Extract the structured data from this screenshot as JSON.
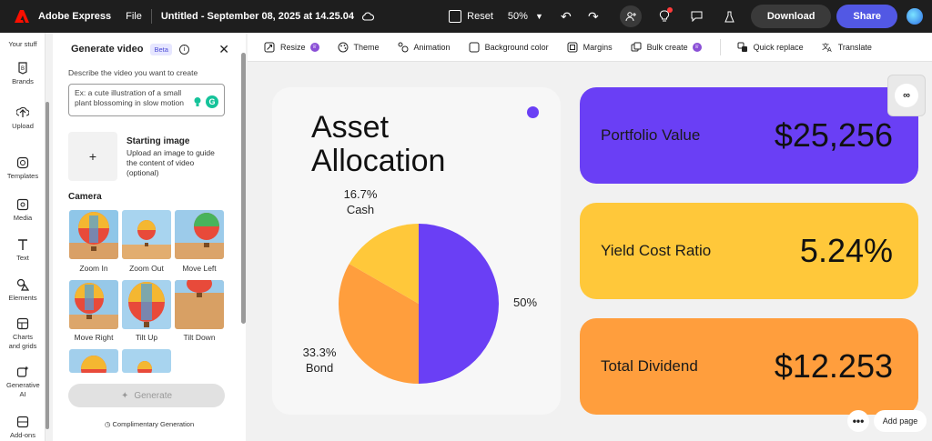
{
  "topbar": {
    "app_name": "Adobe Express",
    "file_label": "File",
    "doc_title": "Untitled - September 08, 2025 at 14.25.04",
    "reset_label": "Reset",
    "zoom_value": "50%",
    "download_label": "Download",
    "share_label": "Share"
  },
  "rail": {
    "items": [
      {
        "label": "Your stuff"
      },
      {
        "label": "Brands"
      },
      {
        "label": "Upload"
      },
      {
        "label": "Templates"
      },
      {
        "label": "Media"
      },
      {
        "label": "Text"
      },
      {
        "label": "Elements"
      },
      {
        "label": "Charts and grids"
      },
      {
        "label": "Generative AI"
      },
      {
        "label": "Add-ons"
      }
    ]
  },
  "panel": {
    "title": "Generate video",
    "beta": "Beta",
    "describe_label": "Describe the video you want to create",
    "prompt_placeholder": "Ex: a cute illustration of a small plant blossoming in slow motion",
    "start_title": "Starting image",
    "start_desc": "Upload an image to guide the content of video (optional)",
    "camera_label": "Camera",
    "camera_options": [
      {
        "label": "Zoom In"
      },
      {
        "label": "Zoom Out"
      },
      {
        "label": "Move Left"
      },
      {
        "label": "Move Right"
      },
      {
        "label": "Tilt Up"
      },
      {
        "label": "Tilt Down"
      }
    ],
    "generate_label": "Generate",
    "complimentary": "Complimentary Generation"
  },
  "toolbar": {
    "items": [
      {
        "label": "Resize"
      },
      {
        "label": "Theme"
      },
      {
        "label": "Animation"
      },
      {
        "label": "Background color"
      },
      {
        "label": "Margins"
      },
      {
        "label": "Bulk create"
      },
      {
        "label": "Quick replace"
      },
      {
        "label": "Translate"
      }
    ]
  },
  "canvas": {
    "title_line1": "Asset",
    "title_line2": "Allocation",
    "kpis": [
      {
        "label": "Portfolio Value",
        "value": "$25,256",
        "color": "#6a3ff5"
      },
      {
        "label": "Yield Cost Ratio",
        "value": "5.24%",
        "color": "#ffc83a"
      },
      {
        "label": "Total Dividend",
        "value": "$12.253",
        "color": "#ff9e3d"
      }
    ],
    "add_page": "Add page"
  },
  "chart_data": {
    "type": "pie",
    "slices": [
      {
        "label": "",
        "pct_text": "50%",
        "value": 50,
        "color": "#6a3ff5"
      },
      {
        "label": "Bond",
        "pct_text": "33.3%",
        "value": 33.3,
        "color": "#ff9e3d"
      },
      {
        "label": "Cash",
        "pct_text": "16.7%",
        "value": 16.7,
        "color": "#ffc83a"
      }
    ]
  }
}
